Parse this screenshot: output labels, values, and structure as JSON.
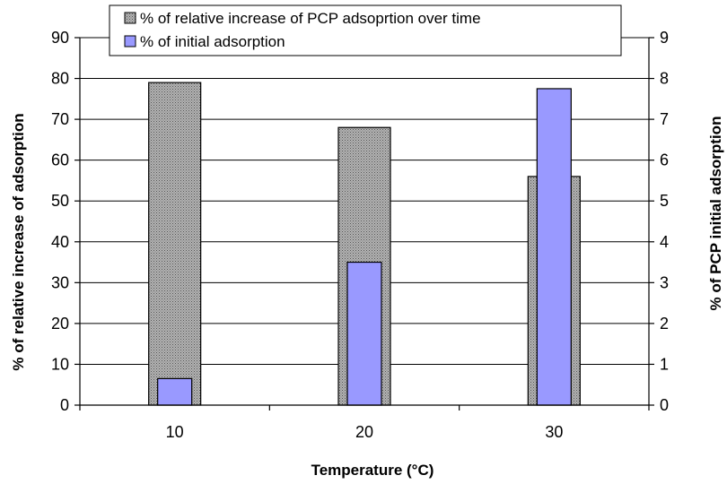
{
  "chart_data": {
    "type": "bar",
    "categories": [
      "10",
      "20",
      "30"
    ],
    "xlabel": "Temperature (°C)",
    "ylabel_left": "% of relative increase of adsorption",
    "ylabel_right": "% of PCP initial adsorption",
    "ylim_left": [
      0,
      90
    ],
    "ylim_right": [
      0,
      9
    ],
    "yticks_left": [
      0,
      10,
      20,
      30,
      40,
      50,
      60,
      70,
      80,
      90
    ],
    "yticks_right": [
      0,
      1,
      2,
      3,
      4,
      5,
      6,
      7,
      8,
      9
    ],
    "grid": true,
    "legend_position": "top",
    "series": [
      {
        "name": "% of relative increase of PCP adsoprtion over time",
        "axis": "left",
        "values": [
          79,
          68,
          56
        ],
        "color": "#a6a6a6",
        "pattern": "dotted-gray"
      },
      {
        "name": "% of initial adsorption",
        "axis": "right",
        "values": [
          0.65,
          3.5,
          7.75
        ],
        "color": "#9999ff"
      }
    ]
  }
}
